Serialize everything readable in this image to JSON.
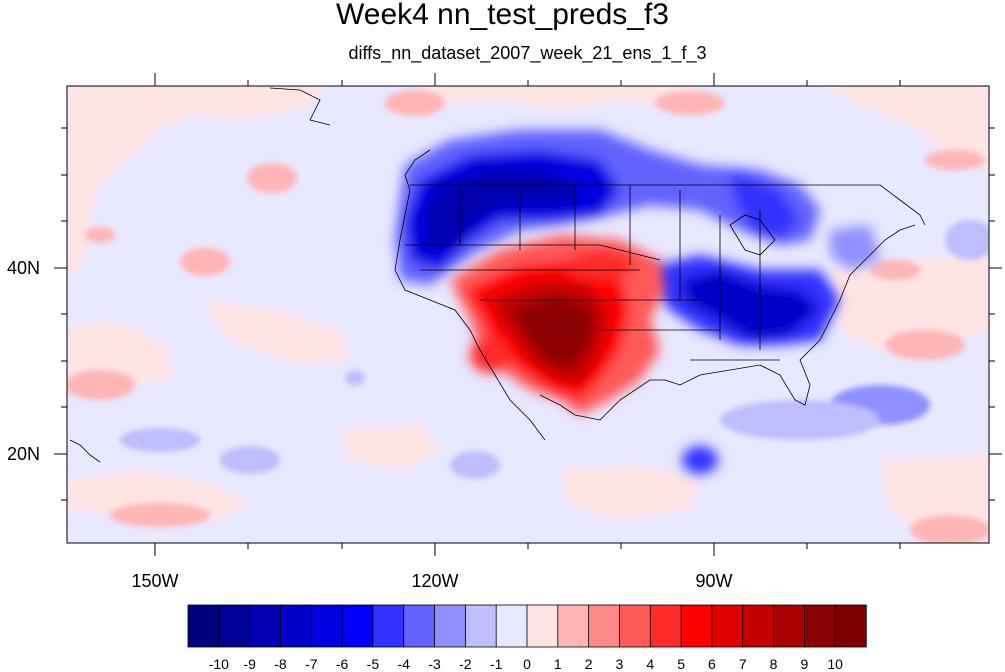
{
  "title": "Week4 nn_test_preds_f3",
  "subtitle": "diffs_nn_dataset_2007_week_21_ens_1_f_3",
  "axes": {
    "x_ticks": [
      {
        "lon": -150,
        "label": "150W"
      },
      {
        "lon": -120,
        "label": "120W"
      },
      {
        "lon": -90,
        "label": "90W"
      }
    ],
    "y_ticks": [
      {
        "lat": 40,
        "label": "40N"
      },
      {
        "lat": 20,
        "label": "20N"
      }
    ],
    "lon_range": [
      -159.3,
      -60.7
    ],
    "lat_range": [
      10.5,
      59.5
    ]
  },
  "colorbar": {
    "labels": [
      "-10",
      "-9",
      "-8",
      "-7",
      "-6",
      "-5",
      "-4",
      "-3",
      "-2",
      "-1",
      "0",
      "1",
      "2",
      "3",
      "4",
      "5",
      "6",
      "7",
      "8",
      "9",
      "10"
    ],
    "colors": [
      "#00007f",
      "#000097",
      "#0000b0",
      "#0000c9",
      "#0000e2",
      "#0000fb",
      "#3333ff",
      "#6262ff",
      "#8f8fff",
      "#bdbdff",
      "#e8e8ff",
      "#ffe4e4",
      "#ffb5b5",
      "#ff8888",
      "#ff5a5a",
      "#ff2b2b",
      "#ff0000",
      "#e20000",
      "#c50000",
      "#a80000",
      "#8b0000",
      "#7f0000"
    ]
  }
}
